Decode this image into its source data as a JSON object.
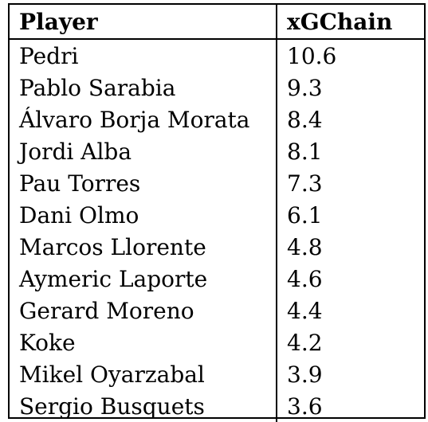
{
  "table": {
    "headers": [
      "Player",
      "xGChain"
    ],
    "rows": [
      {
        "player": "Pedri",
        "xgchain": "10.6"
      },
      {
        "player": "Pablo Sarabia",
        "xgchain": "9.3"
      },
      {
        "player": "Álvaro Borja Morata",
        "xgchain": "8.4"
      },
      {
        "player": "Jordi Alba",
        "xgchain": "8.1"
      },
      {
        "player": "Pau Torres",
        "xgchain": "7.3"
      },
      {
        "player": "Dani Olmo",
        "xgchain": "6.1"
      },
      {
        "player": "Marcos Llorente",
        "xgchain": "4.8"
      },
      {
        "player": "Aymeric Laporte",
        "xgchain": "4.6"
      },
      {
        "player": "Gerard Moreno",
        "xgchain": "4.4"
      },
      {
        "player": "Koke",
        "xgchain": "4.2"
      },
      {
        "player": "Mikel Oyarzabal",
        "xgchain": "3.9"
      },
      {
        "player": "Sergio Busquets",
        "xgchain": "3.6"
      }
    ]
  }
}
